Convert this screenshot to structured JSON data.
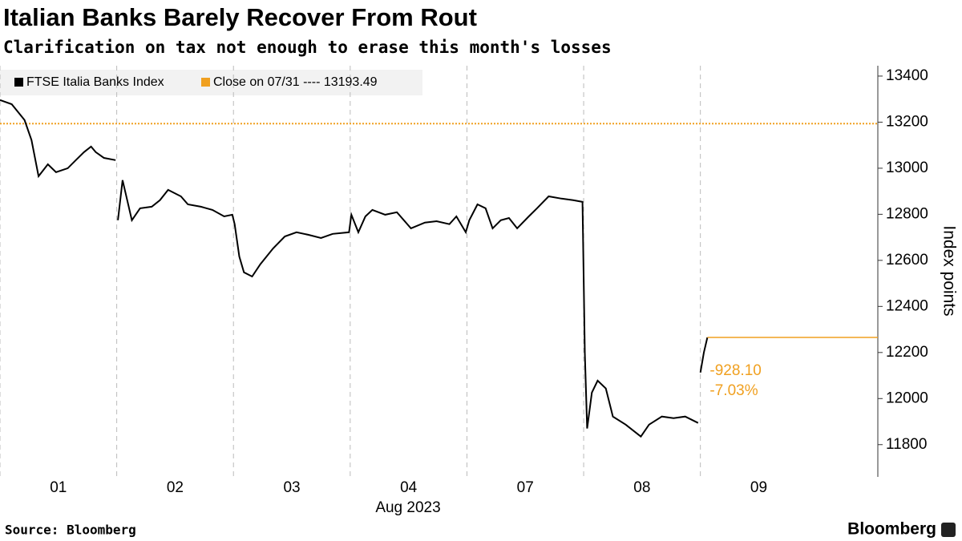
{
  "chart_data": {
    "type": "line",
    "title": "Italian Banks Barely Recover From Rout",
    "subtitle": "Clarification on tax not enough to erase this month's losses",
    "x_label": "Aug 2023",
    "y_label": "Index points",
    "source": "Source: Bloomberg",
    "brand": "Bloomberg",
    "x": [
      0,
      0.1,
      0.21,
      0.27,
      0.33,
      0.41,
      0.48,
      0.58,
      0.65,
      0.72,
      0.78,
      0.82,
      0.89,
      0.99,
      1.0,
      1.01,
      1.05,
      1.09,
      1.13,
      1.2,
      1.3,
      1.37,
      1.44,
      1.55,
      1.61,
      1.72,
      1.82,
      1.92,
      1.99,
      2.01,
      2.05,
      2.09,
      2.16,
      2.23,
      2.34,
      2.44,
      2.54,
      2.64,
      2.75,
      2.85,
      2.99,
      3.01,
      3.07,
      3.13,
      3.19,
      3.3,
      3.4,
      3.52,
      3.64,
      3.74,
      3.85,
      3.91,
      3.99,
      4.02,
      4.09,
      4.16,
      4.22,
      4.29,
      4.36,
      4.43,
      4.53,
      4.6,
      4.7,
      4.81,
      4.91,
      4.99,
      5.01,
      5.03,
      5.07,
      5.12,
      5.19,
      5.25,
      5.36,
      5.49,
      5.56,
      5.67,
      5.77,
      5.87,
      5.98,
      5.99,
      6.0,
      6.03,
      6.06
    ],
    "series": [
      {
        "name": "FTSE Italia Banks Index",
        "color": "#000000",
        "values": [
          13296,
          13278,
          13209,
          13122,
          12965,
          13017,
          12983,
          13000,
          13035,
          13070,
          13094,
          13070,
          13045,
          13035,
          null,
          12774,
          12948,
          12861,
          12774,
          12826,
          12833,
          12861,
          12906,
          12878,
          12843,
          12833,
          12819,
          12791,
          12798,
          12757,
          12617,
          12548,
          12530,
          12583,
          12652,
          12704,
          12722,
          12711,
          12697,
          12715,
          12722,
          12798,
          12722,
          12791,
          12819,
          12798,
          12809,
          12739,
          12764,
          12770,
          12757,
          12791,
          12722,
          12774,
          12843,
          12826,
          12739,
          12774,
          12784,
          12739,
          12791,
          12826,
          12878,
          12868,
          12861,
          12854,
          12200,
          11870,
          12026,
          12078,
          12044,
          11922,
          11887,
          11835,
          11887,
          11922,
          11915,
          11922,
          11894,
          null,
          12113,
          12200,
          12265.39
        ]
      }
    ],
    "reference_line": {
      "label": "Close on 07/31 ---- 13193.49",
      "value": 13193.49,
      "color": "#f0a020"
    },
    "annotations": [
      "-928.10",
      "-7.03%"
    ],
    "annotation_color": "#f0a020",
    "xlim": [
      0,
      7.52
    ],
    "xticks": [
      {
        "value": 0.5,
        "label": "01"
      },
      {
        "value": 1.5,
        "label": "02"
      },
      {
        "value": 2.5,
        "label": "03"
      },
      {
        "value": 3.5,
        "label": "04"
      },
      {
        "value": 4.5,
        "label": "07"
      },
      {
        "value": 5.5,
        "label": "08"
      },
      {
        "value": 6.5,
        "label": "09"
      }
    ],
    "x_grid": [
      0,
      1,
      2,
      3,
      4,
      5,
      6
    ],
    "ylim": [
      11660,
      13445
    ],
    "yticks": [
      11800,
      12000,
      12200,
      12400,
      12600,
      12800,
      13000,
      13200,
      13400
    ]
  }
}
